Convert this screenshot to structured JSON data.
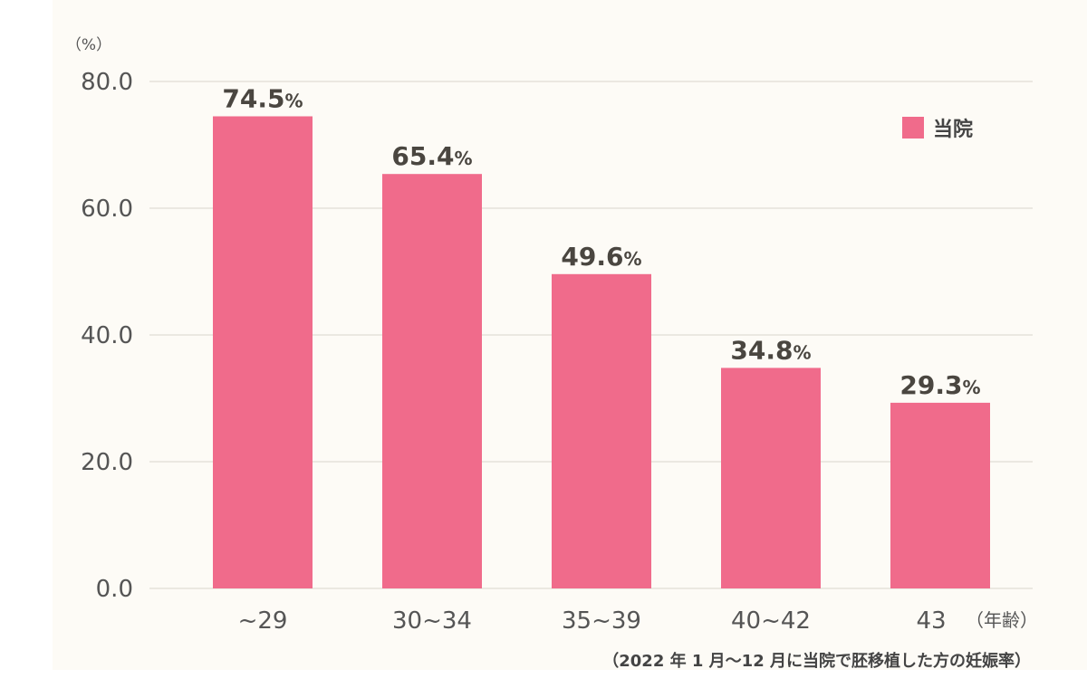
{
  "chart_data": {
    "type": "bar",
    "categories": [
      "~29",
      "30~34",
      "35~39",
      "40~42",
      "43"
    ],
    "series": [
      {
        "name": "当院",
        "values": [
          74.5,
          65.4,
          49.6,
          34.8,
          29.3
        ],
        "color": "#f06b8b"
      }
    ],
    "value_labels": [
      "74.5",
      "65.4",
      "49.6",
      "34.8",
      "29.3"
    ],
    "value_unit": "%",
    "ylabel": "（%）",
    "xunit": "（年齢）",
    "ylim": [
      0,
      80
    ],
    "yticks": [
      "0.0",
      "20.0",
      "40.0",
      "60.0",
      "80.0"
    ],
    "grid": true,
    "legend_position": "top-right",
    "caption": "（2022 年 1 月～12 月に当院で胚移植した方の妊娠率）"
  }
}
